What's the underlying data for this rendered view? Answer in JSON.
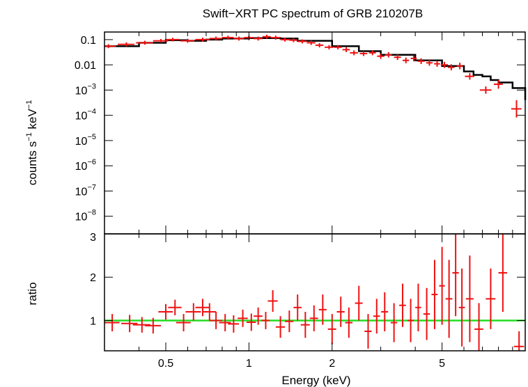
{
  "chart_data": [
    {
      "type": "scatter",
      "title": "Swift−XRT PC spectrum of GRB 210207B",
      "xlabel": "",
      "ylabel_parts": {
        "a": "counts s",
        "b": "−1",
        "c": " keV",
        "d": "−1"
      },
      "xscale": "log",
      "yscale": "log",
      "xlim": [
        0.3,
        10
      ],
      "ylim": [
        2e-09,
        0.2
      ],
      "ytick_labels": [
        {
          "value": 0.1,
          "mant": "0.1",
          "exp": ""
        },
        {
          "value": 0.01,
          "mant": "0.01",
          "exp": ""
        },
        {
          "value": 0.001,
          "mant": "10",
          "exp": "−3"
        },
        {
          "value": 0.0001,
          "mant": "10",
          "exp": "−4"
        },
        {
          "value": 1e-05,
          "mant": "10",
          "exp": "−5"
        },
        {
          "value": 1e-06,
          "mant": "10",
          "exp": "−6"
        },
        {
          "value": 1e-07,
          "mant": "10",
          "exp": "−7"
        },
        {
          "value": 1e-08,
          "mant": "10",
          "exp": "−8"
        }
      ],
      "colors": {
        "data": "#ee1111",
        "model": "#000000"
      },
      "series": [
        {
          "kind": "data",
          "x": [
            0.31,
            0.36,
            0.42,
            0.48,
            0.53,
            0.6,
            0.68,
            0.76,
            0.84,
            0.92,
            1.0,
            1.08,
            1.16,
            1.25,
            1.35,
            1.45,
            1.56,
            1.68,
            1.8,
            1.95,
            2.1,
            2.25,
            2.4,
            2.6,
            2.8,
            3.0,
            3.2,
            3.45,
            3.7,
            3.95,
            4.2,
            4.5,
            4.8,
            5.1,
            5.4,
            5.8,
            6.3,
            7.2,
            8.0,
            9.3
          ],
          "y": [
            0.055,
            0.065,
            0.075,
            0.09,
            0.1,
            0.09,
            0.1,
            0.11,
            0.12,
            0.11,
            0.12,
            0.11,
            0.13,
            0.12,
            0.1,
            0.095,
            0.085,
            0.075,
            0.06,
            0.05,
            0.05,
            0.04,
            0.03,
            0.028,
            0.03,
            0.022,
            0.025,
            0.02,
            0.015,
            0.018,
            0.014,
            0.012,
            0.011,
            0.01,
            0.008,
            0.009,
            0.0035,
            0.001,
            0.0017,
            0.00018
          ],
          "xerr": [
            0.02,
            0.025,
            0.03,
            0.03,
            0.03,
            0.035,
            0.04,
            0.04,
            0.04,
            0.04,
            0.04,
            0.04,
            0.04,
            0.05,
            0.05,
            0.05,
            0.06,
            0.06,
            0.06,
            0.07,
            0.07,
            0.07,
            0.08,
            0.08,
            0.08,
            0.09,
            0.09,
            0.1,
            0.1,
            0.1,
            0.12,
            0.12,
            0.12,
            0.15,
            0.15,
            0.15,
            0.25,
            0.35,
            0.3,
            0.4
          ],
          "yerr": [
            0.2,
            0.2,
            0.2,
            0.18,
            0.18,
            0.2,
            0.2,
            0.2,
            0.2,
            0.2,
            0.2,
            0.2,
            0.2,
            0.2,
            0.2,
            0.2,
            0.2,
            0.22,
            0.22,
            0.22,
            0.22,
            0.25,
            0.25,
            0.25,
            0.25,
            0.28,
            0.28,
            0.28,
            0.3,
            0.3,
            0.3,
            0.3,
            0.32,
            0.32,
            0.32,
            0.35,
            0.35,
            0.4,
            0.5,
            1.2
          ]
        },
        {
          "kind": "model",
          "x": [
            0.3,
            0.4,
            0.5,
            0.6,
            0.7,
            0.8,
            1.0,
            1.3,
            1.5,
            2.0,
            2.5,
            3.0,
            4.0,
            5.0,
            6.0,
            6.5,
            7.0,
            7.5,
            8.0,
            9.0,
            10.0
          ],
          "y": [
            0.055,
            0.075,
            0.095,
            0.09,
            0.1,
            0.11,
            0.115,
            0.11,
            0.09,
            0.055,
            0.035,
            0.025,
            0.015,
            0.009,
            0.0055,
            0.004,
            0.0035,
            0.0025,
            0.002,
            0.0012,
            0.0004
          ]
        }
      ]
    },
    {
      "type": "scatter",
      "title": "",
      "xlabel": "Energy (keV)",
      "ylabel": "ratio",
      "xscale": "log",
      "yscale": "linear",
      "xlim": [
        0.3,
        10
      ],
      "ylim": [
        0.3,
        3.0
      ],
      "xtick_labels": [
        {
          "value": 0.5,
          "label": "0.5"
        },
        {
          "value": 1,
          "label": "1"
        },
        {
          "value": 2,
          "label": "2"
        },
        {
          "value": 5,
          "label": "5"
        }
      ],
      "ytick_labels": [
        {
          "value": 1,
          "label": "1"
        },
        {
          "value": 2,
          "label": "2"
        },
        {
          "value": 3,
          "label": "3"
        }
      ],
      "colors": {
        "data": "#ee1111",
        "reference": "#22dd22"
      },
      "reference_line": 1,
      "series": [
        {
          "kind": "data",
          "x": [
            0.32,
            0.37,
            0.41,
            0.45,
            0.5,
            0.54,
            0.58,
            0.63,
            0.68,
            0.72,
            0.76,
            0.82,
            0.88,
            0.95,
            1.02,
            1.08,
            1.15,
            1.22,
            1.3,
            1.4,
            1.5,
            1.6,
            1.72,
            1.85,
            2.0,
            2.15,
            2.3,
            2.5,
            2.7,
            2.9,
            3.1,
            3.35,
            3.6,
            3.85,
            4.1,
            4.4,
            4.7,
            5.0,
            5.3,
            5.6,
            5.9,
            6.3,
            6.8,
            7.5,
            8.3,
            9.5
          ],
          "y": [
            0.95,
            0.93,
            0.9,
            0.88,
            1.2,
            1.3,
            0.95,
            1.2,
            1.3,
            1.2,
            1.0,
            0.95,
            0.92,
            1.05,
            0.96,
            1.1,
            1.0,
            1.45,
            0.85,
            0.98,
            1.3,
            0.9,
            1.05,
            1.25,
            0.8,
            1.2,
            0.95,
            1.4,
            0.75,
            1.1,
            1.2,
            0.95,
            1.35,
            1.0,
            1.3,
            1.15,
            1.6,
            1.8,
            1.5,
            2.1,
            1.3,
            1.5,
            0.8,
            1.5,
            2.1,
            0.4
          ],
          "xerr": [
            0.02,
            0.025,
            0.03,
            0.03,
            0.03,
            0.03,
            0.035,
            0.04,
            0.04,
            0.04,
            0.04,
            0.04,
            0.04,
            0.04,
            0.04,
            0.04,
            0.04,
            0.05,
            0.05,
            0.05,
            0.05,
            0.06,
            0.06,
            0.06,
            0.07,
            0.07,
            0.07,
            0.08,
            0.08,
            0.08,
            0.09,
            0.09,
            0.1,
            0.1,
            0.1,
            0.12,
            0.12,
            0.12,
            0.15,
            0.15,
            0.15,
            0.2,
            0.25,
            0.3,
            0.3,
            0.4
          ],
          "yerr": [
            0.2,
            0.2,
            0.18,
            0.18,
            0.18,
            0.18,
            0.2,
            0.2,
            0.2,
            0.2,
            0.2,
            0.2,
            0.2,
            0.2,
            0.2,
            0.2,
            0.2,
            0.25,
            0.25,
            0.25,
            0.3,
            0.3,
            0.3,
            0.35,
            0.35,
            0.35,
            0.35,
            0.4,
            0.4,
            0.4,
            0.45,
            0.45,
            0.5,
            0.5,
            0.55,
            0.6,
            0.8,
            0.9,
            0.9,
            1.0,
            0.9,
            1.0,
            0.6,
            0.7,
            0.9,
            0.35
          ]
        }
      ]
    }
  ]
}
